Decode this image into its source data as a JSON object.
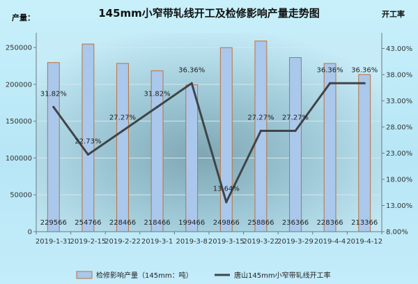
{
  "chart_data": {
    "type": "bar+line",
    "title": "145mm小窄带轧线开工及检修影响产量走势图",
    "ylabel_left": "产量：",
    "ylabel_right": "开工率",
    "categories": [
      "2019-1-31",
      "2019-2-15",
      "2019-2-22",
      "2019-3-1",
      "2019-3-8",
      "2019-3-15",
      "2019-3-22",
      "2019-3-29",
      "2019-4-4",
      "2019-4-12"
    ],
    "series": [
      {
        "name": "检修影响产量（145mm：吨）",
        "type": "bar",
        "axis": "left",
        "values": [
          229566,
          254766,
          228466,
          218466,
          199466,
          249866,
          258866,
          236366,
          228366,
          213366
        ],
        "labels": [
          "229566",
          "254766",
          "228466",
          "218466",
          "199466",
          "249866",
          "258866",
          "236366",
          "228366",
          "213366"
        ],
        "color": "#a9c8ec",
        "border": "#c0703a"
      },
      {
        "name": "唐山145mm小窄带轧线开工率",
        "type": "line",
        "axis": "right",
        "values": [
          31.82,
          22.73,
          27.27,
          31.82,
          36.36,
          13.64,
          27.27,
          27.27,
          36.36,
          36.36
        ],
        "labels": [
          "31.82%",
          "22.73%",
          "27.27%",
          "31.82%",
          "36.36%",
          "13.64%",
          "27.27%",
          "27.27%",
          "36.36%",
          "36.36%"
        ],
        "color": "#404448"
      }
    ],
    "y_left": {
      "min": 0,
      "max": 270000,
      "ticks": [
        0,
        50000,
        100000,
        150000,
        200000,
        250000
      ],
      "tick_labels": [
        "0",
        "50000",
        "100000",
        "150000",
        "200000",
        "250000"
      ]
    },
    "y_right": {
      "min": 8,
      "max": 46,
      "ticks": [
        8,
        13,
        18,
        23,
        28,
        33,
        38,
        43
      ],
      "tick_labels": [
        "8.00%",
        "13.00%",
        "18.00%",
        "23.00%",
        "28.00%",
        "33.00%",
        "38.00%",
        "43.00%"
      ]
    },
    "grid": true,
    "legend_position": "bottom"
  }
}
